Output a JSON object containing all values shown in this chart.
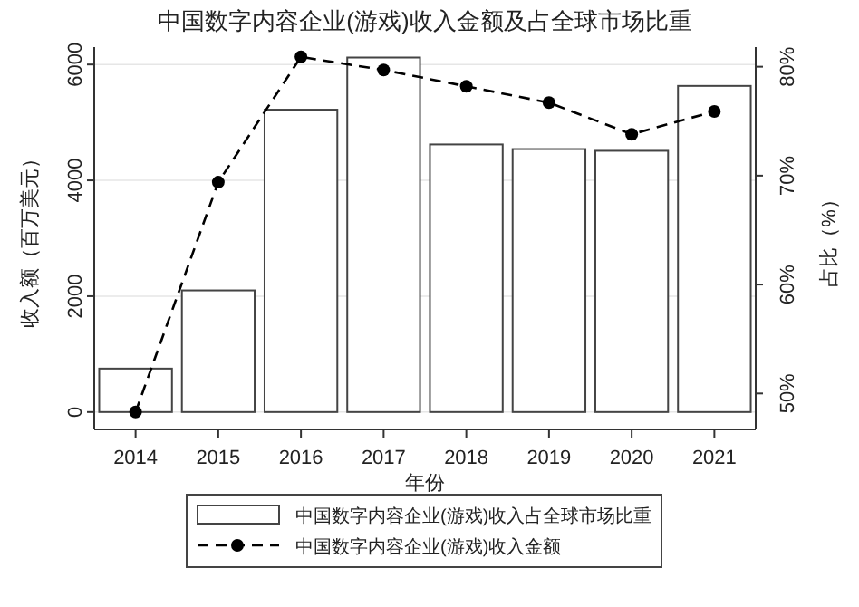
{
  "chart_data": {
    "type": "bar",
    "title": "中国数字内容企业(游戏)收入金额及占全球市场比重",
    "xlabel": "年份",
    "ylabel": "收入额（百万美元）",
    "y2label": "占比（%）",
    "categories": [
      "2014",
      "2015",
      "2016",
      "2017",
      "2018",
      "2019",
      "2020",
      "2021"
    ],
    "series": [
      {
        "name": "中国数字内容企业(游戏)收入占全球市场比重",
        "color": "#ffffff",
        "values": [
          750,
          2100,
          5220,
          6120,
          4620,
          4540,
          4510,
          5630
        ]
      },
      {
        "name": "中国数字内容企业(游戏)收入金额",
        "type": "line",
        "axis": "y2",
        "color": "#000000",
        "marker": "circle",
        "line_style": "dashed",
        "values": [
          48.3,
          69.4,
          80.9,
          79.7,
          78.2,
          76.7,
          73.8,
          75.9
        ]
      }
    ],
    "ylim": [
      -300,
      6300
    ],
    "yticks": [
      0,
      2000,
      4000,
      6000
    ],
    "y2lim": [
      46.7,
      81.8
    ],
    "y2ticks": [
      {
        "value": 50,
        "label": "50%"
      },
      {
        "value": 60,
        "label": "60%"
      },
      {
        "value": 70,
        "label": "70%"
      },
      {
        "value": 80,
        "label": "80%"
      }
    ],
    "grid": "y",
    "legend": "bottom"
  }
}
